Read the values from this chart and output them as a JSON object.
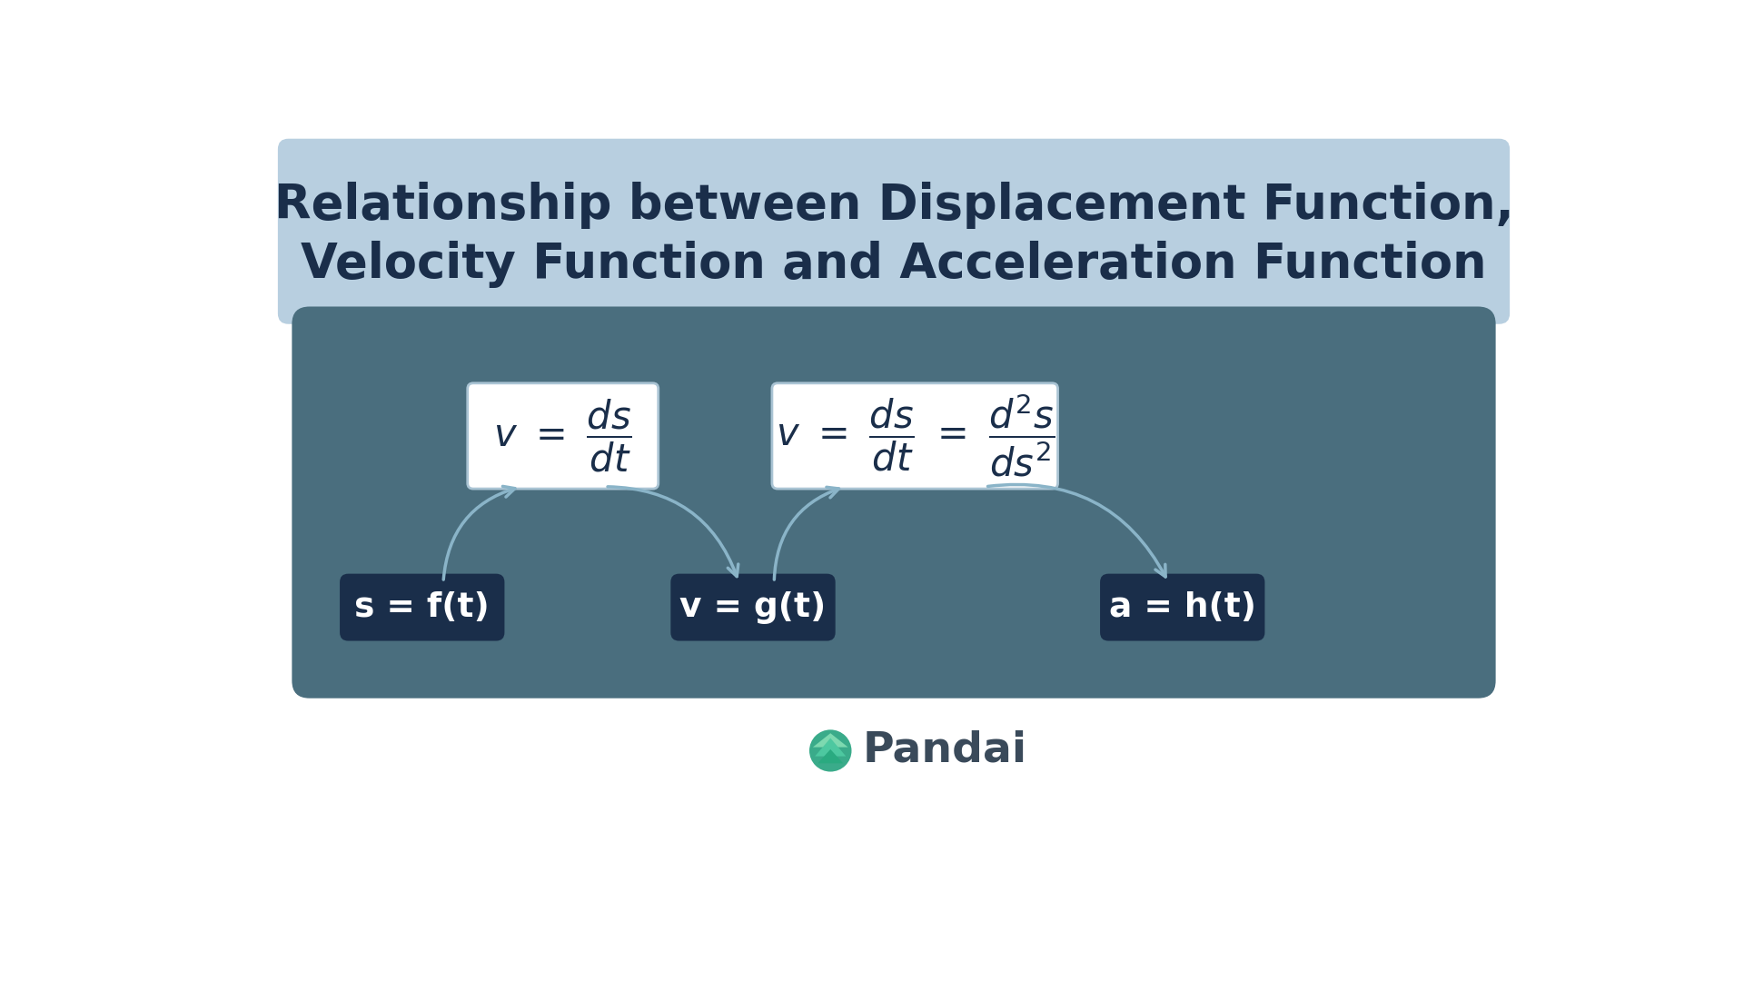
{
  "bg_color": "#ffffff",
  "title_line1": "Relationship between Displacement Function,",
  "title_line2": "Velocity Function and Acceleration Function",
  "title_color": "#1a2e4a",
  "title_bg_color": "#b8cfe0",
  "title_fontsize": 38,
  "main_box_color": "#4a6e7e",
  "formula_box_color": "#ffffff",
  "formula_box_edge": "#aac4d4",
  "label_box_color": "#1a2e4a",
  "label_text_color": "#ffffff",
  "arrow_color": "#8ab4c8",
  "label1": "s = f(t)",
  "label2": "v = g(t)",
  "label3": "a = h(t)",
  "pandai_color": "#3a4a5a",
  "pandai_green_light": "#7dd9b0",
  "pandai_green_mid": "#4dc8a0",
  "pandai_green_dark": "#2aaa80",
  "pandai_teal": "#3aab8a"
}
